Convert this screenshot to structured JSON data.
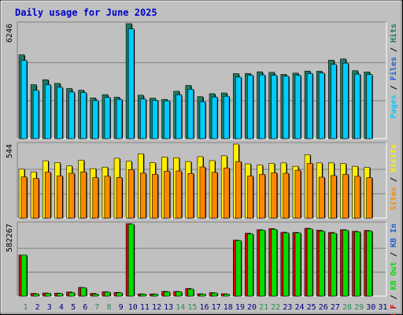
{
  "title": "Daily usage for June 2025",
  "colors": {
    "hits": "#1e7a62",
    "files": "#00ccff",
    "sites": "#ffee00",
    "visits": "#ff8800",
    "kb_in": "#00dd00",
    "kb_out": "#dd0000",
    "weekend_label": "#2e8b57",
    "weekday_label": "#000080"
  },
  "chart_data": [
    {
      "type": "bar",
      "panel": "hits-files",
      "ymax_label": "6246",
      "ylim": [
        0,
        6246
      ],
      "grid": true,
      "right_legend": [
        {
          "text": "Pages",
          "color": "#00ccff"
        },
        {
          "text": " / ",
          "color": "#000000"
        },
        {
          "text": "Files",
          "color": "#1f5fd6"
        },
        {
          "text": " / ",
          "color": "#000000"
        },
        {
          "text": "Hits",
          "color": "#1e7a62"
        }
      ],
      "series": [
        {
          "name": "Hits",
          "values": [
            4550,
            2930,
            3200,
            3000,
            2720,
            2630,
            2210,
            2390,
            2250,
            6246,
            2360,
            2200,
            2130,
            2570,
            2890,
            2280,
            2440,
            2480,
            3530,
            3540,
            3630,
            3600,
            3490,
            3560,
            3670,
            3660,
            4260,
            4330,
            3690,
            3620
          ]
        },
        {
          "name": "Files",
          "values": [
            4250,
            2620,
            2930,
            2790,
            2530,
            2500,
            2060,
            2240,
            2130,
            5960,
            2150,
            2080,
            2050,
            2380,
            2680,
            2000,
            2260,
            2300,
            3340,
            3440,
            3460,
            3440,
            3390,
            3440,
            3540,
            3560,
            4030,
            4100,
            3500,
            3480
          ]
        }
      ]
    },
    {
      "type": "bar",
      "panel": "sites-visits",
      "ymax_label": "544",
      "ylim": [
        0,
        544
      ],
      "grid": true,
      "right_legend": [
        {
          "text": "Sites",
          "color": "#ff8800"
        },
        {
          "text": " / ",
          "color": "#000000"
        },
        {
          "text": "Visits",
          "color": "#ffee00"
        }
      ],
      "series": [
        {
          "name": "Visits",
          "values": [
            360,
            340,
            422,
            408,
            384,
            426,
            364,
            375,
            440,
            418,
            473,
            407,
            449,
            444,
            416,
            452,
            423,
            458,
            544,
            399,
            391,
            403,
            406,
            381,
            467,
            406,
            406,
            402,
            381,
            373
          ]
        },
        {
          "name": "Sites",
          "values": [
            303,
            292,
            338,
            311,
            330,
            340,
            298,
            308,
            299,
            357,
            331,
            322,
            345,
            347,
            328,
            376,
            337,
            369,
            416,
            310,
            322,
            333,
            330,
            352,
            403,
            301,
            313,
            322,
            307,
            297
          ]
        }
      ]
    },
    {
      "type": "bar",
      "panel": "kbytes",
      "ymax_label": "582267",
      "ylim": [
        0,
        582267
      ],
      "grid": true,
      "right_legend": [
        {
          "text": "KB F",
          "color": "#dd0000"
        },
        {
          "text": " / ",
          "color": "#000000"
        },
        {
          "text": "KB Out",
          "color": "#00dd00"
        },
        {
          "text": " / ",
          "color": "#000000"
        },
        {
          "text": "KB In",
          "color": "#1f5fd6"
        }
      ],
      "series": [
        {
          "name": "KB Out",
          "values": [
            330000,
            22000,
            25000,
            24000,
            33000,
            70000,
            22000,
            35000,
            30000,
            582267,
            18000,
            18000,
            38000,
            38000,
            62000,
            19000,
            28000,
            19000,
            450000,
            506000,
            534000,
            543000,
            513000,
            512000,
            545000,
            530000,
            512000,
            534000,
            521000,
            528000
          ]
        },
        {
          "name": "KB F",
          "values": [
            330000,
            18000,
            22000,
            21000,
            28000,
            68000,
            16000,
            32000,
            27000,
            578000,
            16000,
            15000,
            34000,
            35000,
            57000,
            16000,
            25000,
            15000,
            446000,
            500000,
            530000,
            537000,
            508000,
            508000,
            540000,
            523000,
            506000,
            530000,
            516000,
            524000
          ]
        }
      ]
    }
  ],
  "x_labels": [
    "1",
    "2",
    "3",
    "4",
    "5",
    "6",
    "7",
    "8",
    "9",
    "10",
    "11",
    "12",
    "13",
    "14",
    "15",
    "16",
    "17",
    "18",
    "19",
    "20",
    "21",
    "22",
    "23",
    "24",
    "25",
    "26",
    "27",
    "28",
    "29",
    "30",
    "31"
  ],
  "weekend_days": [
    1,
    7,
    8,
    14,
    15,
    21,
    22,
    28,
    29
  ]
}
